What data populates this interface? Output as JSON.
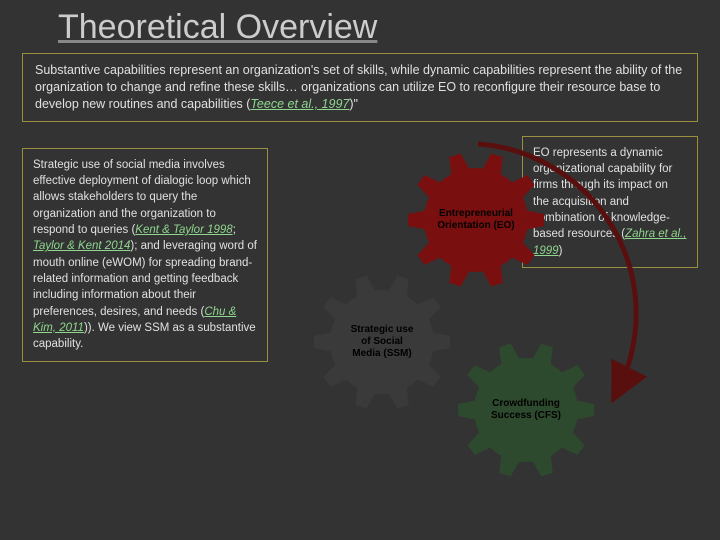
{
  "title": "Theoretical Overview",
  "intro": {
    "text_before": "Substantive capabilities represent an organization's set of skills, while dynamic capabilities represent the ability of the organization to change and refine these skills… organizations can utilize EO to reconfigure their resource base to develop new routines and capabilities (",
    "cite": "Teece et al., 1997",
    "text_after": ")\""
  },
  "left": {
    "t1": "Strategic use of social media involves effective deployment of dialogic loop which allows stakeholders to query the organization and the organization to respond to queries (",
    "c1": "Kent & Taylor 1998",
    "t2": "; ",
    "c2": "Taylor & Kent 2014",
    "t3": "); and leveraging word of mouth online (eWOM) for spreading brand-related information and getting feedback including information about their preferences, desires, and needs (",
    "c3": "Chu & Kim, 2011",
    "t4": ")). We view SSM as a substantive capability."
  },
  "right": {
    "t1": "EO represents a dynamic organizational capability for firms through its impact on the acquisition and combination of knowledge-based resources (",
    "c1": "Zahra et al., 1999",
    "t2": ")"
  },
  "diagram": {
    "type": "gear-flow",
    "background": "#333333",
    "arrow_color": "#5a0f0f",
    "arrow_width": 5,
    "gears": {
      "eo": {
        "label_l1": "Entrepreneurial",
        "label_l2": "Orientation (EO)",
        "fill": "#7a0f0f",
        "size": 140,
        "teeth": 10
      },
      "ssm": {
        "label_l1": "Strategic use",
        "label_l2": "of Social",
        "label_l3": "Media (SSM)",
        "fill": "#3a3a3a",
        "size": 140,
        "teeth": 10
      },
      "cfs": {
        "label_l1": "Crowdfunding",
        "label_l2": "Success (CFS)",
        "fill": "#2e4a2e",
        "size": 140,
        "teeth": 10
      }
    }
  },
  "colors": {
    "page_bg": "#333333",
    "box_border": "#9a8f3f",
    "text": "#e0e0e0",
    "title": "#cccccc",
    "citation": "#8fd68f"
  },
  "fonts": {
    "title_size_pt": 26,
    "body_size_pt": 9,
    "gear_label_size_pt": 8,
    "family": "Arial"
  }
}
